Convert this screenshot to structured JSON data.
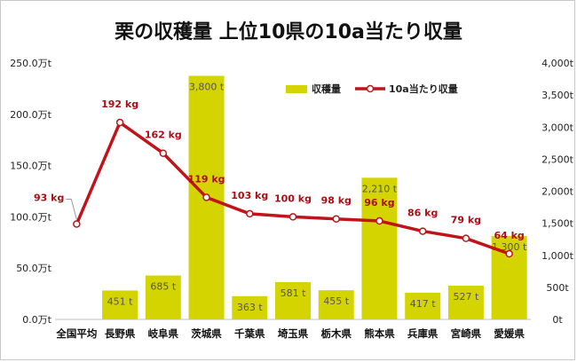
{
  "chart_data": {
    "type": "bar",
    "title": "栗の収穫量 上位10県の10a当たり収量",
    "categories": [
      "全国平均",
      "長野県",
      "岐阜県",
      "茨城県",
      "千葉県",
      "埼玉県",
      "栃木県",
      "熊本県",
      "兵庫県",
      "宮崎県",
      "愛媛県"
    ],
    "series": [
      {
        "name": "収穫量",
        "type": "bar",
        "axis": "right",
        "color": "#d4d400",
        "values": [
          null,
          451,
          685,
          3800,
          363,
          581,
          455,
          2210,
          417,
          527,
          1300
        ],
        "labels": [
          "",
          "451 t",
          "685 t",
          "3,800 t",
          "363 t",
          "581 t",
          "455 t",
          "2,210 t",
          "417 t",
          "527 t",
          "1,300 t"
        ]
      },
      {
        "name": "10a当たり収量",
        "type": "line",
        "axis": "left",
        "color": "#c0141a",
        "values": [
          93,
          192,
          162,
          119,
          103,
          100,
          98,
          96,
          86,
          79,
          64
        ],
        "labels": [
          "93 kg",
          "192 kg",
          "162 kg",
          "119 kg",
          "103 kg",
          "100 kg",
          "98 kg",
          "96 kg",
          "86 kg",
          "79 kg",
          "64 kg"
        ]
      }
    ],
    "left_axis": {
      "ylim": [
        0,
        250
      ],
      "ticks": [
        "0.0万t",
        "50.0万t",
        "100.0万t",
        "150.0万t",
        "200.0万t",
        "250.0万t"
      ]
    },
    "right_axis": {
      "ylim": [
        0,
        4000
      ],
      "ticks": [
        "0t",
        "500t",
        "1,000t",
        "1,500t",
        "2,000t",
        "2,500t",
        "3,000t",
        "3,500t",
        "4,000t"
      ]
    },
    "grid": false,
    "legend_position": "top-right"
  }
}
